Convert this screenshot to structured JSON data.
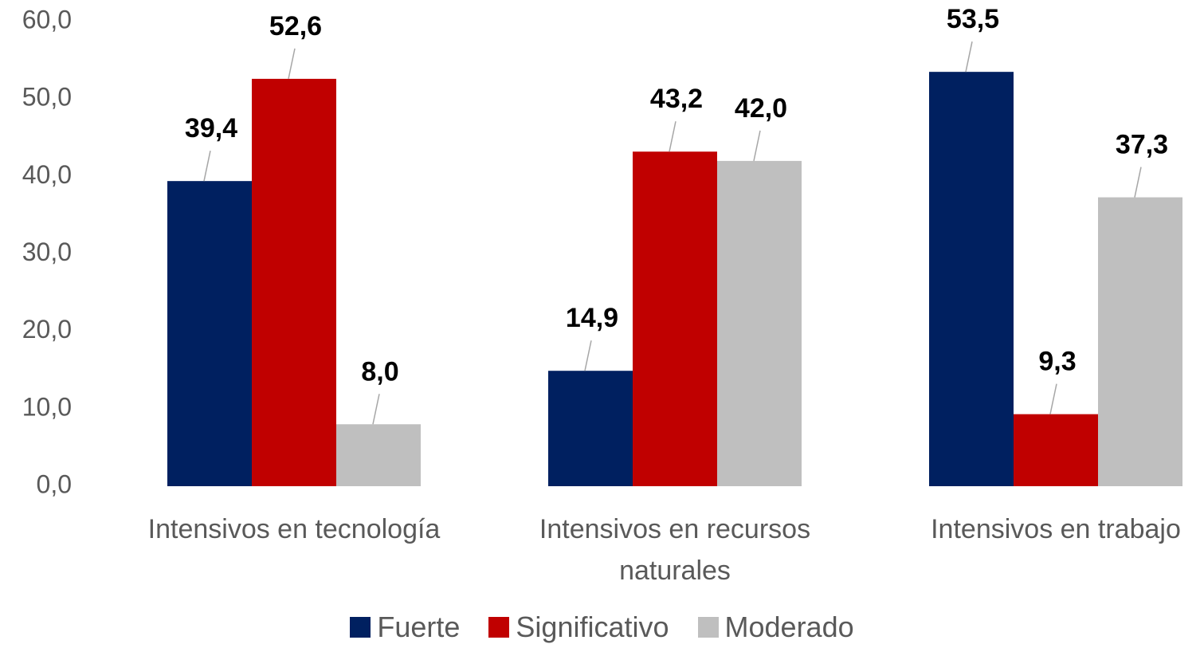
{
  "chart_data": {
    "type": "bar",
    "categories": [
      "Intensivos en tecnología",
      "Intensivos en recursos naturales",
      "Intensivos en trabajo"
    ],
    "series": [
      {
        "name": "Fuerte",
        "color": "#002060",
        "values": [
          39.4,
          14.9,
          53.5
        ],
        "value_labels": [
          "39,4",
          "14,9",
          "53,5"
        ]
      },
      {
        "name": "Significativo",
        "color": "#c00000",
        "values": [
          52.6,
          43.2,
          9.3
        ],
        "value_labels": [
          "52,6",
          "43,2",
          "9,3"
        ]
      },
      {
        "name": "Moderado",
        "color": "#bfbfbf",
        "values": [
          8.0,
          42.0,
          37.3
        ],
        "value_labels": [
          "8,0",
          "42,0",
          "37,3"
        ]
      }
    ],
    "ylim": [
      0,
      60
    ],
    "yticks": [
      {
        "value": 0,
        "label": "0,0"
      },
      {
        "value": 10,
        "label": "10,0"
      },
      {
        "value": 20,
        "label": "20,0"
      },
      {
        "value": 30,
        "label": "30,0"
      },
      {
        "value": 40,
        "label": "40,0"
      },
      {
        "value": 50,
        "label": "50,0"
      },
      {
        "value": 60,
        "label": "60,0"
      }
    ],
    "grid": false,
    "legend": "bottom"
  }
}
